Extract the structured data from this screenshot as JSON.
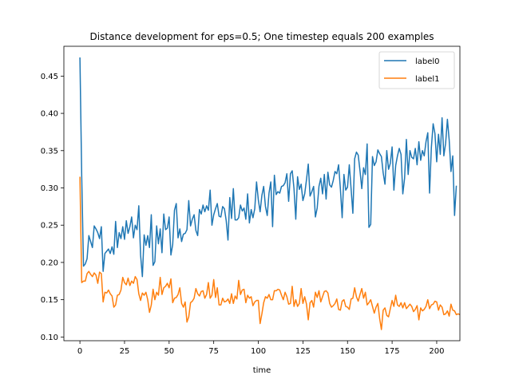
{
  "chart_data": {
    "type": "line",
    "title": "Distance development for eps=0.5; One timestep equals 200 examples",
    "xlabel": "time",
    "ylabel": "",
    "xlim": [
      -9,
      213
    ],
    "ylim": [
      0.095,
      0.49
    ],
    "xticks": [
      0,
      25,
      50,
      75,
      100,
      125,
      150,
      175,
      200
    ],
    "yticks": [
      0.1,
      0.15,
      0.2,
      0.25,
      0.3,
      0.35,
      0.4,
      0.45
    ],
    "ytick_labels": [
      "0.10",
      "0.15",
      "0.20",
      "0.25",
      "0.30",
      "0.35",
      "0.40",
      "0.45"
    ],
    "legend_position": "top-right",
    "grid": false,
    "series": [
      {
        "name": "label0",
        "color": "#1f77b4",
        "values": [
          0.475,
          0.316,
          0.195,
          0.198,
          0.205,
          0.236,
          0.228,
          0.22,
          0.249,
          0.245,
          0.24,
          0.232,
          0.248,
          0.188,
          0.212,
          0.215,
          0.218,
          0.212,
          0.221,
          0.211,
          0.255,
          0.22,
          0.24,
          0.232,
          0.248,
          0.231,
          0.256,
          0.239,
          0.248,
          0.261,
          0.233,
          0.25,
          0.244,
          0.276,
          0.21,
          0.181,
          0.237,
          0.223,
          0.236,
          0.22,
          0.264,
          0.196,
          0.201,
          0.249,
          0.225,
          0.245,
          0.213,
          0.265,
          0.244,
          0.246,
          0.261,
          0.21,
          0.224,
          0.27,
          0.279,
          0.233,
          0.245,
          0.228,
          0.238,
          0.239,
          0.244,
          0.283,
          0.249,
          0.258,
          0.264,
          0.243,
          0.236,
          0.271,
          0.265,
          0.277,
          0.268,
          0.276,
          0.27,
          0.297,
          0.25,
          0.264,
          0.272,
          0.279,
          0.262,
          0.261,
          0.275,
          0.272,
          0.256,
          0.23,
          0.287,
          0.259,
          0.299,
          0.257,
          0.257,
          0.26,
          0.277,
          0.269,
          0.273,
          0.258,
          0.292,
          0.253,
          0.271,
          0.26,
          0.272,
          0.308,
          0.284,
          0.268,
          0.29,
          0.302,
          0.275,
          0.263,
          0.293,
          0.308,
          0.248,
          0.317,
          0.291,
          0.295,
          0.293,
          0.302,
          0.303,
          0.307,
          0.319,
          0.282,
          0.319,
          0.323,
          0.299,
          0.258,
          0.315,
          0.298,
          0.305,
          0.283,
          0.292,
          0.311,
          0.332,
          0.289,
          0.295,
          0.302,
          0.261,
          0.273,
          0.302,
          0.313,
          0.292,
          0.318,
          0.285,
          0.321,
          0.304,
          0.301,
          0.31,
          0.322,
          0.319,
          0.331,
          0.299,
          0.26,
          0.318,
          0.297,
          0.301,
          0.331,
          0.299,
          0.266,
          0.339,
          0.348,
          0.344,
          0.323,
          0.299,
          0.327,
          0.318,
          0.359,
          0.247,
          0.251,
          0.342,
          0.33,
          0.335,
          0.351,
          0.346,
          0.342,
          0.32,
          0.305,
          0.35,
          0.325,
          0.333,
          0.355,
          0.297,
          0.33,
          0.343,
          0.353,
          0.345,
          0.292,
          0.313,
          0.365,
          0.318,
          0.35,
          0.341,
          0.339,
          0.353,
          0.331,
          0.362,
          0.337,
          0.35,
          0.343,
          0.362,
          0.374,
          0.293,
          0.354,
          0.386,
          0.373,
          0.335,
          0.372,
          0.345,
          0.394,
          0.343,
          0.36,
          0.392,
          0.364,
          0.322,
          0.343,
          0.263,
          0.303
        ]
      },
      {
        "name": "label1",
        "color": "#ff7f0e",
        "values": [
          0.315,
          0.173,
          0.175,
          0.175,
          0.185,
          0.188,
          0.184,
          0.181,
          0.186,
          0.183,
          0.172,
          0.187,
          0.185,
          0.147,
          0.16,
          0.159,
          0.163,
          0.158,
          0.155,
          0.14,
          0.143,
          0.156,
          0.157,
          0.163,
          0.18,
          0.173,
          0.17,
          0.179,
          0.169,
          0.175,
          0.172,
          0.181,
          0.177,
          0.158,
          0.149,
          0.159,
          0.156,
          0.16,
          0.15,
          0.133,
          0.143,
          0.164,
          0.15,
          0.16,
          0.156,
          0.18,
          0.157,
          0.166,
          0.168,
          0.172,
          0.166,
          0.178,
          0.146,
          0.152,
          0.153,
          0.157,
          0.166,
          0.145,
          0.14,
          0.147,
          0.12,
          0.127,
          0.146,
          0.148,
          0.152,
          0.165,
          0.158,
          0.155,
          0.161,
          0.162,
          0.152,
          0.157,
          0.173,
          0.152,
          0.156,
          0.177,
          0.153,
          0.166,
          0.143,
          0.143,
          0.152,
          0.147,
          0.148,
          0.151,
          0.145,
          0.158,
          0.145,
          0.155,
          0.151,
          0.176,
          0.157,
          0.163,
          0.164,
          0.146,
          0.156,
          0.152,
          0.154,
          0.142,
          0.147,
          0.149,
          0.149,
          0.118,
          0.131,
          0.146,
          0.154,
          0.152,
          0.157,
          0.15,
          0.15,
          0.162,
          0.162,
          0.164,
          0.163,
          0.156,
          0.15,
          0.16,
          0.154,
          0.144,
          0.145,
          0.168,
          0.141,
          0.15,
          0.141,
          0.145,
          0.165,
          0.145,
          0.154,
          0.144,
          0.123,
          0.146,
          0.149,
          0.14,
          0.16,
          0.153,
          0.162,
          0.147,
          0.154,
          0.161,
          0.162,
          0.159,
          0.145,
          0.14,
          0.142,
          0.145,
          0.151,
          0.137,
          0.136,
          0.148,
          0.15,
          0.141,
          0.14,
          0.137,
          0.151,
          0.152,
          0.166,
          0.154,
          0.148,
          0.157,
          0.165,
          0.152,
          0.16,
          0.143,
          0.146,
          0.15,
          0.141,
          0.132,
          0.14,
          0.145,
          0.125,
          0.11,
          0.136,
          0.139,
          0.129,
          0.127,
          0.138,
          0.149,
          0.141,
          0.156,
          0.143,
          0.141,
          0.146,
          0.139,
          0.146,
          0.138,
          0.141,
          0.144,
          0.141,
          0.134,
          0.137,
          0.142,
          0.123,
          0.139,
          0.135,
          0.137,
          0.141,
          0.15,
          0.138,
          0.143,
          0.144,
          0.148,
          0.147,
          0.136,
          0.143,
          0.14,
          0.13,
          0.131,
          0.135,
          0.128,
          0.144,
          0.136,
          0.135,
          0.13,
          0.131,
          0.13
        ]
      }
    ]
  }
}
